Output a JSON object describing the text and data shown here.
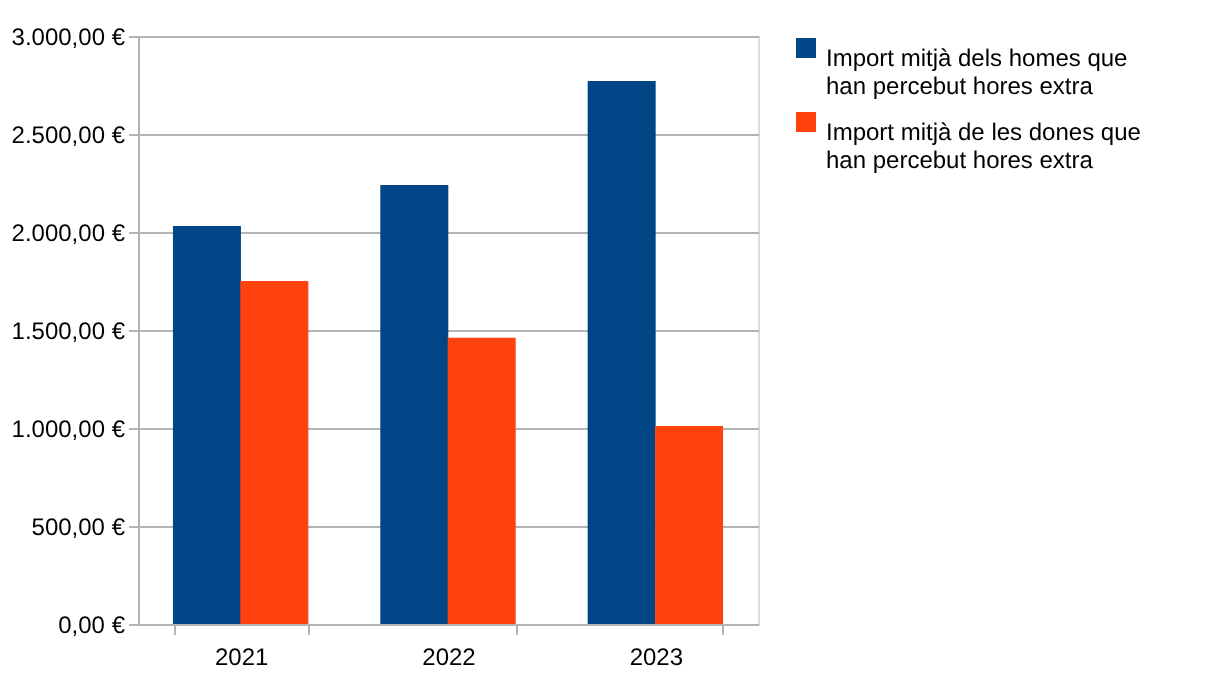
{
  "chart_data": {
    "type": "bar",
    "categories": [
      "2021",
      "2022",
      "2023"
    ],
    "series": [
      {
        "name": "Import mitjà dels homes que han percebut hores extra",
        "color": "#004586",
        "values": [
          2030,
          2240,
          2770
        ]
      },
      {
        "name": "Import mitjà de les dones que han percebut hores extra",
        "color": "#ff420e",
        "values": [
          1750,
          1460,
          1010
        ]
      }
    ],
    "ylim": [
      0,
      3000
    ],
    "yticks": [
      {
        "value": 0,
        "label": "0,00 €"
      },
      {
        "value": 500,
        "label": "500,00 €"
      },
      {
        "value": 1000,
        "label": "1.000,00 €"
      },
      {
        "value": 1500,
        "label": "1.500,00 €"
      },
      {
        "value": 2000,
        "label": "2.000,00 €"
      },
      {
        "value": 2500,
        "label": "2.500,00 €"
      },
      {
        "value": 3000,
        "label": "3.000,00 €"
      }
    ],
    "grid": "y",
    "legend": "right"
  }
}
